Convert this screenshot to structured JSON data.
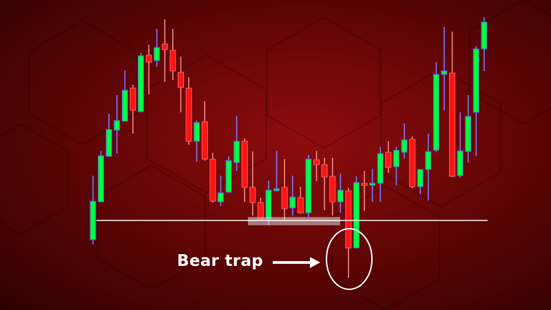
{
  "chart_data": {
    "type": "candlestick",
    "title": "",
    "xlabel": "",
    "ylabel": "",
    "grid": false,
    "colors": {
      "bullish_body": "#00ff3c",
      "bullish_border": "#5a5aff",
      "bullish_wick": "#7b7bff",
      "bearish_body": "#ff1212",
      "bearish_border": "#e06a6a",
      "bearish_wick": "#f08a8a",
      "support_line": "#ffffff",
      "annotation": "#ffffff"
    },
    "ohlc_fields": [
      "open",
      "high",
      "low",
      "close"
    ],
    "candles": [
      [
        102,
        195,
        95,
        158
      ],
      [
        157,
        231,
        157,
        224
      ],
      [
        223,
        285,
        223,
        262
      ],
      [
        261,
        312,
        227,
        275
      ],
      [
        274,
        348,
        274,
        319
      ],
      [
        322,
        327,
        256,
        290
      ],
      [
        288,
        373,
        287,
        369
      ],
      [
        370,
        385,
        313,
        360
      ],
      [
        362,
        408,
        353,
        381
      ],
      [
        386,
        422,
        331,
        378
      ],
      [
        377,
        408,
        334,
        347
      ],
      [
        345,
        368,
        287,
        323
      ],
      [
        322,
        338,
        240,
        245
      ],
      [
        245,
        275,
        215,
        272
      ],
      [
        273,
        303,
        217,
        219
      ],
      [
        219,
        228,
        156,
        158
      ],
      [
        157,
        195,
        151,
        170
      ],
      [
        171,
        223,
        171,
        217
      ],
      [
        214,
        282,
        202,
        245
      ],
      [
        245,
        249,
        157,
        178
      ],
      [
        178,
        230,
        137,
        156
      ],
      [
        156,
        163,
        132,
        132
      ],
      [
        132,
        188,
        123,
        174
      ],
      [
        175,
        231,
        175,
        176
      ],
      [
        178,
        219,
        130,
        147
      ],
      [
        148,
        195,
        137,
        164
      ],
      [
        163,
        179,
        140,
        141
      ],
      [
        141,
        225,
        135,
        219
      ],
      [
        218,
        231,
        187,
        211
      ],
      [
        211,
        221,
        145,
        193
      ],
      [
        194,
        221,
        137,
        157
      ],
      [
        157,
        198,
        141,
        174
      ],
      [
        173,
        177,
        47,
        90
      ],
      [
        90,
        194,
        90,
        185
      ],
      [
        184,
        202,
        144,
        182
      ],
      [
        182,
        205,
        157,
        184
      ],
      [
        184,
        237,
        157,
        227
      ],
      [
        229,
        245,
        199,
        207
      ],
      [
        208,
        237,
        181,
        232
      ],
      [
        229,
        271,
        220,
        247
      ],
      [
        248,
        252,
        177,
        179
      ],
      [
        179,
        204,
        168,
        204
      ],
      [
        204,
        256,
        159,
        230
      ],
      [
        232,
        360,
        229,
        342
      ],
      [
        342,
        411,
        290,
        347
      ],
      [
        344,
        404,
        193,
        194
      ],
      [
        195,
        287,
        192,
        231
      ],
      [
        230,
        312,
        214,
        281
      ],
      [
        287,
        383,
        223,
        379
      ],
      [
        379,
        425,
        347,
        418
      ]
    ],
    "support_level": 130,
    "annotations": [
      {
        "label": "Bear trap",
        "target_candle_index": 32,
        "marker": "ellipse",
        "pointer": "arrow-right"
      }
    ]
  }
}
